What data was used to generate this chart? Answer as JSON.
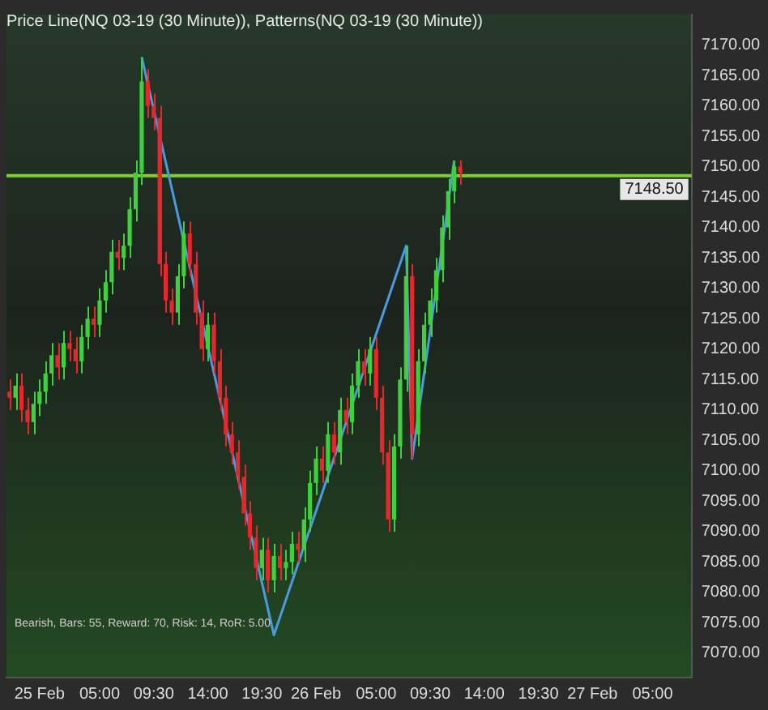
{
  "chart_data": {
    "type": "candlestick",
    "title": "Price Line(NQ 03-19 (30 Minute)), Patterns(NQ 03-19 (30 Minute))",
    "categories": [
      null,
      null,
      null,
      null,
      null,
      "25 Feb",
      null,
      null,
      null,
      null,
      null,
      null,
      null,
      null,
      null,
      "05:00",
      null,
      null,
      null,
      null,
      null,
      null,
      null,
      null,
      "09:30",
      null,
      null,
      null,
      null,
      null,
      null,
      null,
      null,
      "14:00",
      null,
      null,
      null,
      null,
      null,
      null,
      null,
      null,
      "19:30",
      null,
      null,
      null,
      null,
      null,
      null,
      null,
      null,
      "26 Feb",
      null,
      null,
      null,
      null,
      null,
      null,
      null,
      null,
      null,
      "05:00",
      null,
      null,
      null,
      null,
      null,
      null,
      null,
      null,
      "09:30",
      null,
      null,
      null,
      null,
      null,
      null,
      null,
      null,
      "14:00",
      null,
      null,
      null,
      null,
      null,
      null,
      null,
      null,
      "19:30",
      null,
      null,
      null,
      null,
      null,
      null,
      null,
      null,
      "27 Feb",
      null,
      null,
      null,
      null,
      null,
      null,
      null,
      null,
      null,
      "05:00",
      null,
      null,
      null,
      null,
      null,
      null
    ],
    "ohlc": [
      [
        7113,
        7115,
        7110,
        7112
      ],
      [
        7112,
        7116,
        7110,
        7114
      ],
      [
        7114,
        7116,
        7108,
        7110
      ],
      [
        7110,
        7112,
        7106,
        7108
      ],
      [
        7108,
        7113,
        7106,
        7111
      ],
      [
        7111,
        7115,
        7109,
        7113
      ],
      [
        7113,
        7118,
        7111,
        7116
      ],
      [
        7116,
        7121,
        7114,
        7119
      ],
      [
        7119,
        7121,
        7115,
        7117
      ],
      [
        7117,
        7123,
        7115,
        7121
      ],
      [
        7121,
        7123,
        7118,
        7120
      ],
      [
        7120,
        7122,
        7116,
        7118
      ],
      [
        7118,
        7124,
        7116,
        7122
      ],
      [
        7122,
        7127,
        7120,
        7125
      ],
      [
        7125,
        7127,
        7122,
        7124
      ],
      [
        7124,
        7130,
        7122,
        7128
      ],
      [
        7128,
        7133,
        7126,
        7131
      ],
      [
        7131,
        7138,
        7129,
        7136
      ],
      [
        7136,
        7138,
        7133,
        7135
      ],
      [
        7135,
        7139,
        7133,
        7137
      ],
      [
        7137,
        7145,
        7135,
        7143
      ],
      [
        7143,
        7151,
        7141,
        7149
      ],
      [
        7149,
        7168,
        7147,
        7164
      ],
      [
        7164,
        7166,
        7158,
        7160
      ],
      [
        7160,
        7162,
        7156,
        7158
      ],
      [
        7158,
        7160,
        7132,
        7134
      ],
      [
        7134,
        7136,
        7126,
        7128
      ],
      [
        7128,
        7130,
        7124,
        7126
      ],
      [
        7126,
        7134,
        7124,
        7132
      ],
      [
        7132,
        7141,
        7130,
        7139
      ],
      [
        7139,
        7141,
        7132,
        7134
      ],
      [
        7134,
        7136,
        7124,
        7126
      ],
      [
        7126,
        7128,
        7118,
        7120
      ],
      [
        7120,
        7126,
        7118,
        7124
      ],
      [
        7124,
        7126,
        7116,
        7118
      ],
      [
        7118,
        7120,
        7110,
        7112
      ],
      [
        7112,
        7114,
        7104,
        7106
      ],
      [
        7106,
        7108,
        7101,
        7103
      ],
      [
        7103,
        7105,
        7097,
        7099
      ],
      [
        7099,
        7101,
        7091,
        7093
      ],
      [
        7093,
        7095,
        7087,
        7089
      ],
      [
        7089,
        7091,
        7082,
        7084
      ],
      [
        7084,
        7089,
        7082,
        7087
      ],
      [
        7087,
        7089,
        7080,
        7082
      ],
      [
        7082,
        7088,
        7080,
        7086
      ],
      [
        7086,
        7088,
        7082,
        7084
      ],
      [
        7084,
        7087,
        7082,
        7085
      ],
      [
        7085,
        7090,
        7083,
        7088
      ],
      [
        7088,
        7090,
        7085,
        7087
      ],
      [
        7087,
        7094,
        7085,
        7092
      ],
      [
        7092,
        7100,
        7090,
        7098
      ],
      [
        7098,
        7104,
        7096,
        7102
      ],
      [
        7102,
        7104,
        7098,
        7100
      ],
      [
        7100,
        7108,
        7098,
        7106
      ],
      [
        7106,
        7108,
        7101,
        7103
      ],
      [
        7103,
        7112,
        7101,
        7110
      ],
      [
        7110,
        7112,
        7106,
        7108
      ],
      [
        7108,
        7116,
        7106,
        7114
      ],
      [
        7114,
        7120,
        7112,
        7118
      ],
      [
        7118,
        7120,
        7114,
        7116
      ],
      [
        7116,
        7122,
        7114,
        7120
      ],
      [
        7120,
        7122,
        7110,
        7112
      ],
      [
        7112,
        7114,
        7101,
        7103
      ],
      [
        7103,
        7105,
        7090,
        7092
      ],
      [
        7092,
        7106,
        7090,
        7104
      ],
      [
        7104,
        7117,
        7102,
        7115
      ],
      [
        7115,
        7137,
        7113,
        7132
      ],
      [
        7132,
        7134,
        7102,
        7106
      ],
      [
        7106,
        7120,
        7104,
        7118
      ],
      [
        7118,
        7126,
        7116,
        7124
      ],
      [
        7124,
        7130,
        7122,
        7128
      ],
      [
        7128,
        7135,
        7126,
        7133
      ],
      [
        7133,
        7142,
        7131,
        7140
      ],
      [
        7140,
        7148,
        7138,
        7146
      ],
      [
        7146,
        7151,
        7144,
        7150
      ],
      [
        7150,
        7151,
        7147,
        7149
      ],
      null,
      null,
      null,
      null,
      null,
      null,
      null,
      null,
      null,
      null,
      null,
      null,
      null,
      null,
      null,
      null,
      null,
      null,
      null,
      null,
      null,
      null,
      null,
      null,
      null,
      null,
      null,
      null,
      null,
      null,
      null,
      null,
      null,
      null,
      null,
      null,
      null,
      null
    ],
    "series": [
      {
        "type": "line",
        "color": "#4a9be0",
        "values": [
          null,
          null,
          null,
          null,
          null,
          null,
          null,
          null,
          null,
          null,
          null,
          null,
          null,
          null,
          null,
          null,
          null,
          null,
          null,
          null,
          null,
          null,
          7168,
          null,
          null,
          null,
          null,
          null,
          null,
          null,
          null,
          null,
          null,
          null,
          null,
          null,
          null,
          null,
          null,
          null,
          null,
          null,
          null,
          null,
          7073,
          null,
          null,
          null,
          null,
          null,
          null,
          null,
          null,
          null,
          null,
          null,
          null,
          null,
          null,
          null,
          null,
          null,
          null,
          null,
          null,
          null,
          7137,
          7102,
          null,
          null,
          null,
          null,
          null,
          null,
          7151,
          null,
          null,
          null,
          null,
          null,
          null,
          null,
          null,
          null,
          null,
          null,
          null,
          null,
          null,
          null,
          null,
          null,
          null,
          null,
          null,
          null,
          null,
          null,
          null,
          null,
          null,
          null,
          null,
          null,
          null,
          null,
          null,
          null,
          null,
          null,
          null,
          null,
          null,
          null
        ]
      }
    ],
    "ylim": [
      7066,
      7175
    ],
    "yticks": [
      {
        "value": 7070,
        "label": "7070.00"
      },
      {
        "value": 7075,
        "label": "7075.00"
      },
      {
        "value": 7080,
        "label": "7080.00"
      },
      {
        "value": 7085,
        "label": "7085.00"
      },
      {
        "value": 7090,
        "label": "7090.00"
      },
      {
        "value": 7095,
        "label": "7095.00"
      },
      {
        "value": 7100,
        "label": "7100.00"
      },
      {
        "value": 7105,
        "label": "7105.00"
      },
      {
        "value": 7110,
        "label": "7110.00"
      },
      {
        "value": 7115,
        "label": "7115.00"
      },
      {
        "value": 7120,
        "label": "7120.00"
      },
      {
        "value": 7125,
        "label": "7125.00"
      },
      {
        "value": 7130,
        "label": "7130.00"
      },
      {
        "value": 7135,
        "label": "7135.00"
      },
      {
        "value": 7140,
        "label": "7140.00"
      },
      {
        "value": 7145,
        "label": "7145.00"
      },
      {
        "value": 7150,
        "label": "7150.00"
      },
      {
        "value": 7155,
        "label": "7155.00"
      },
      {
        "value": 7160,
        "label": "7160.00"
      },
      {
        "value": 7165,
        "label": "7165.00"
      },
      {
        "value": 7170,
        "label": "7170.00"
      }
    ],
    "ref_lines": [
      {
        "axis": "y",
        "value": 7148.5,
        "label": "7148.50",
        "color": "#7fd02a"
      }
    ],
    "annotations": [
      "Bearish, Bars: 55, Reward: 70, Risk: 14, RoR: 5.00"
    ],
    "grid": false,
    "legend": false
  }
}
